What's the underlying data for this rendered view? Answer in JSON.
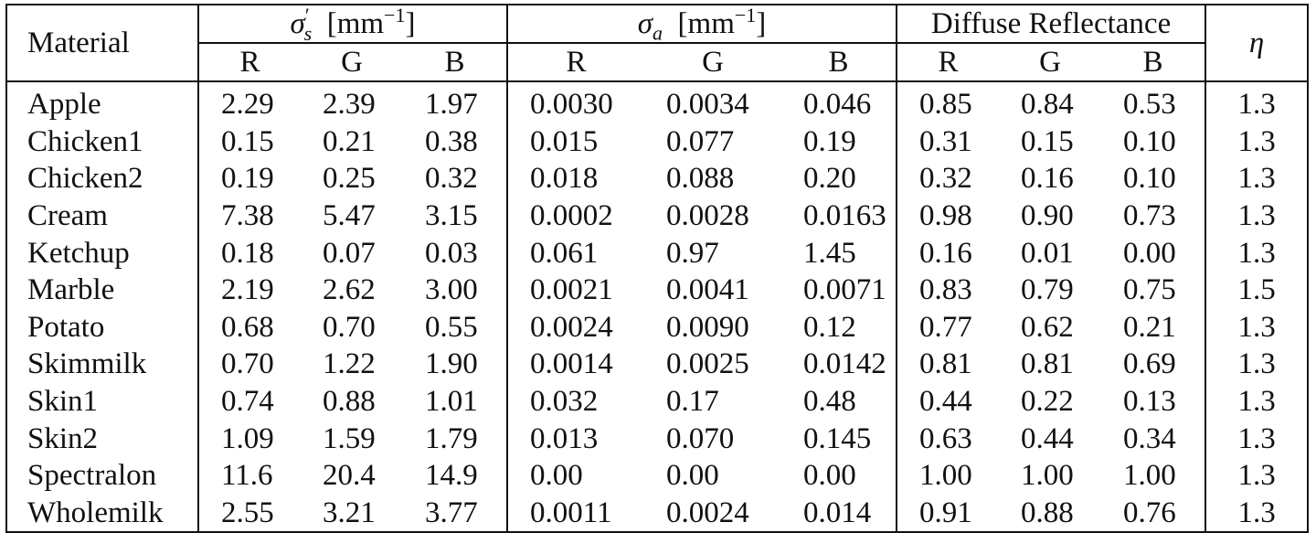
{
  "table": {
    "header": {
      "material": "Material",
      "sigma_s_prime": {
        "symbol": "σ",
        "sup": "′",
        "sub": "s",
        "unit": "[mm",
        "unit_sup": "−1",
        "unit_close": "]"
      },
      "sigma_a": {
        "symbol": "σ",
        "sub": "a",
        "unit": "[mm",
        "unit_sup": "−1",
        "unit_close": "]"
      },
      "diffuse": "Diffuse Reflectance",
      "eta": "η",
      "channels": [
        "R",
        "G",
        "B"
      ]
    },
    "rows": [
      {
        "material": "Apple",
        "ss": [
          "2.29",
          "2.39",
          "1.97"
        ],
        "sa": [
          "0.0030",
          "0.0034",
          "0.046"
        ],
        "dr": [
          "0.85",
          "0.84",
          "0.53"
        ],
        "eta": "1.3"
      },
      {
        "material": "Chicken1",
        "ss": [
          "0.15",
          "0.21",
          "0.38"
        ],
        "sa": [
          "0.015",
          "0.077",
          "0.19"
        ],
        "dr": [
          "0.31",
          "0.15",
          "0.10"
        ],
        "eta": "1.3"
      },
      {
        "material": "Chicken2",
        "ss": [
          "0.19",
          "0.25",
          "0.32"
        ],
        "sa": [
          "0.018",
          "0.088",
          "0.20"
        ],
        "dr": [
          "0.32",
          "0.16",
          "0.10"
        ],
        "eta": "1.3"
      },
      {
        "material": "Cream",
        "ss": [
          "7.38",
          "5.47",
          "3.15"
        ],
        "sa": [
          "0.0002",
          "0.0028",
          "0.0163"
        ],
        "dr": [
          "0.98",
          "0.90",
          "0.73"
        ],
        "eta": "1.3"
      },
      {
        "material": "Ketchup",
        "ss": [
          "0.18",
          "0.07",
          "0.03"
        ],
        "sa": [
          "0.061",
          "0.97",
          "1.45"
        ],
        "dr": [
          "0.16",
          "0.01",
          "0.00"
        ],
        "eta": "1.3"
      },
      {
        "material": "Marble",
        "ss": [
          "2.19",
          "2.62",
          "3.00"
        ],
        "sa": [
          "0.0021",
          "0.0041",
          "0.0071"
        ],
        "dr": [
          "0.83",
          "0.79",
          "0.75"
        ],
        "eta": "1.5"
      },
      {
        "material": "Potato",
        "ss": [
          "0.68",
          "0.70",
          "0.55"
        ],
        "sa": [
          "0.0024",
          "0.0090",
          "0.12"
        ],
        "dr": [
          "0.77",
          "0.62",
          "0.21"
        ],
        "eta": "1.3"
      },
      {
        "material": "Skimmilk",
        "ss": [
          "0.70",
          "1.22",
          "1.90"
        ],
        "sa": [
          "0.0014",
          "0.0025",
          "0.0142"
        ],
        "dr": [
          "0.81",
          "0.81",
          "0.69"
        ],
        "eta": "1.3"
      },
      {
        "material": "Skin1",
        "ss": [
          "0.74",
          "0.88",
          "1.01"
        ],
        "sa": [
          "0.032",
          "0.17",
          "0.48"
        ],
        "dr": [
          "0.44",
          "0.22",
          "0.13"
        ],
        "eta": "1.3"
      },
      {
        "material": "Skin2",
        "ss": [
          "1.09",
          "1.59",
          "1.79"
        ],
        "sa": [
          "0.013",
          "0.070",
          "0.145"
        ],
        "dr": [
          "0.63",
          "0.44",
          "0.34"
        ],
        "eta": "1.3"
      },
      {
        "material": "Spectralon",
        "ss": [
          "11.6",
          "20.4",
          "14.9"
        ],
        "sa": [
          "0.00",
          "0.00",
          "0.00"
        ],
        "dr": [
          "1.00",
          "1.00",
          "1.00"
        ],
        "eta": "1.3"
      },
      {
        "material": "Wholemilk",
        "ss": [
          "2.55",
          "3.21",
          "3.77"
        ],
        "sa": [
          "0.0011",
          "0.0024",
          "0.014"
        ],
        "dr": [
          "0.91",
          "0.88",
          "0.76"
        ],
        "eta": "1.3"
      }
    ]
  }
}
